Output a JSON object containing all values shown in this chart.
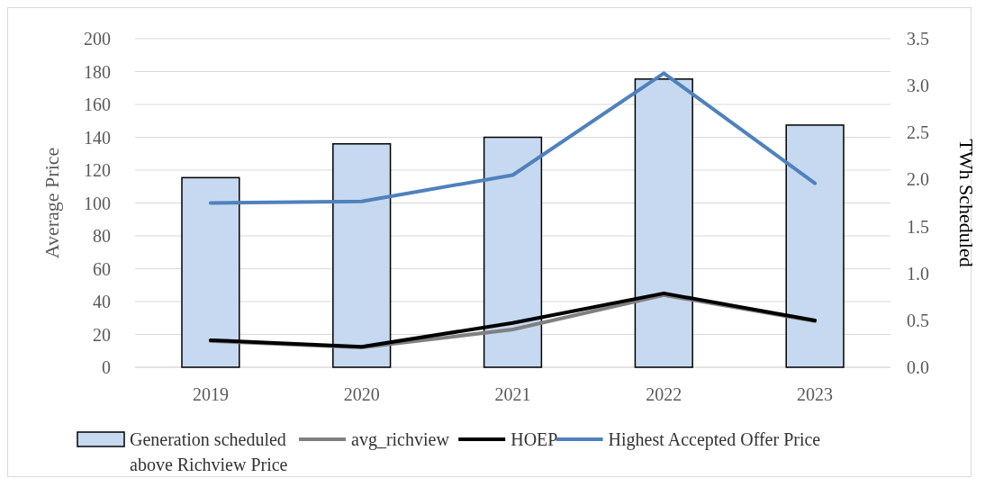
{
  "chart_data": {
    "type": "bar",
    "categories": [
      "2019",
      "2020",
      "2021",
      "2022",
      "2023"
    ],
    "ylabel": "Average Price",
    "y2label": "TWh Scheduled",
    "ylim": [
      0,
      200
    ],
    "yticks": [
      0,
      20,
      40,
      60,
      80,
      100,
      120,
      140,
      160,
      180,
      200
    ],
    "y2lim": [
      0,
      3.5
    ],
    "y2ticks": [
      {
        "value": 0,
        "label": "0.0"
      },
      {
        "value": 0.5,
        "label": "0.5"
      },
      {
        "value": 1,
        "label": "1.0"
      },
      {
        "value": 1.5,
        "label": "1.5"
      },
      {
        "value": 2,
        "label": "2.0"
      },
      {
        "value": 2.5,
        "label": "2.5"
      },
      {
        "value": 3,
        "label": "3.0"
      },
      {
        "value": 3.5,
        "label": "3.5"
      }
    ],
    "grid": "y",
    "legend": "bottom",
    "series": [
      {
        "name": "Generation scheduled above Richview Price",
        "axis": "y2",
        "color": "#c6d9f0",
        "values": [
          2.02,
          2.38,
          2.45,
          3.07,
          2.58
        ]
      },
      {
        "name": "avg_richview",
        "type": "line",
        "color": "#808080",
        "values": [
          16,
          12,
          23,
          44,
          28
        ]
      },
      {
        "name": "HOEP",
        "type": "line",
        "color": "#000000",
        "values": [
          16.5,
          12.5,
          27,
          45,
          28.5
        ]
      },
      {
        "name": "Highest Accepted Offer Price",
        "type": "line",
        "color": "#4f81bd",
        "values": [
          100,
          101,
          117,
          179,
          112
        ]
      }
    ]
  }
}
